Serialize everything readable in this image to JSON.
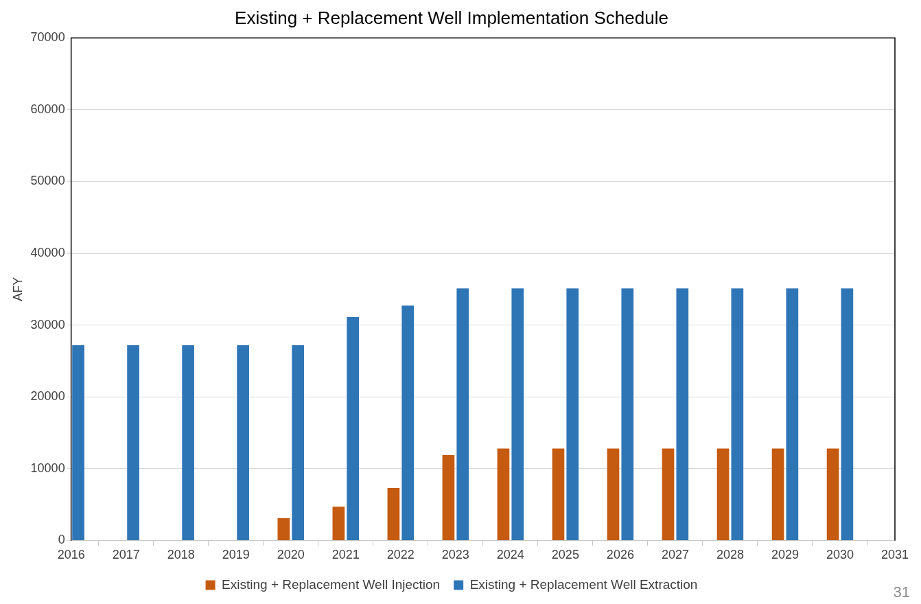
{
  "chart_data": {
    "type": "bar",
    "title": "Existing + Replacement Well Implementation Schedule",
    "ylabel": "AFY",
    "x": [
      2016,
      2017,
      2018,
      2019,
      2020,
      2021,
      2022,
      2023,
      2024,
      2025,
      2026,
      2027,
      2028,
      2029,
      2030
    ],
    "series": [
      {
        "name": "Existing + Replacement Well Injection",
        "color": "#c55a11",
        "values": [
          null,
          null,
          null,
          null,
          3100,
          4700,
          7300,
          11900,
          12800,
          12800,
          12800,
          12800,
          12800,
          12800,
          12800
        ]
      },
      {
        "name": "Existing + Replacement Well Extraction",
        "color": "#2e75b6",
        "values": [
          27200,
          27200,
          27200,
          27200,
          27200,
          31100,
          32700,
          35100,
          35100,
          35100,
          35100,
          35100,
          35100,
          35100,
          35100
        ]
      }
    ],
    "xlim": [
      2016,
      2031
    ],
    "xticks": [
      2016,
      2017,
      2018,
      2019,
      2020,
      2021,
      2022,
      2023,
      2024,
      2025,
      2026,
      2027,
      2028,
      2029,
      2030,
      2031
    ],
    "ylim": [
      0,
      70000
    ],
    "yticks": [
      0,
      10000,
      20000,
      30000,
      40000,
      50000,
      60000,
      70000
    ],
    "grid": "y",
    "legend": "bottom",
    "annotations": [
      "31"
    ]
  }
}
